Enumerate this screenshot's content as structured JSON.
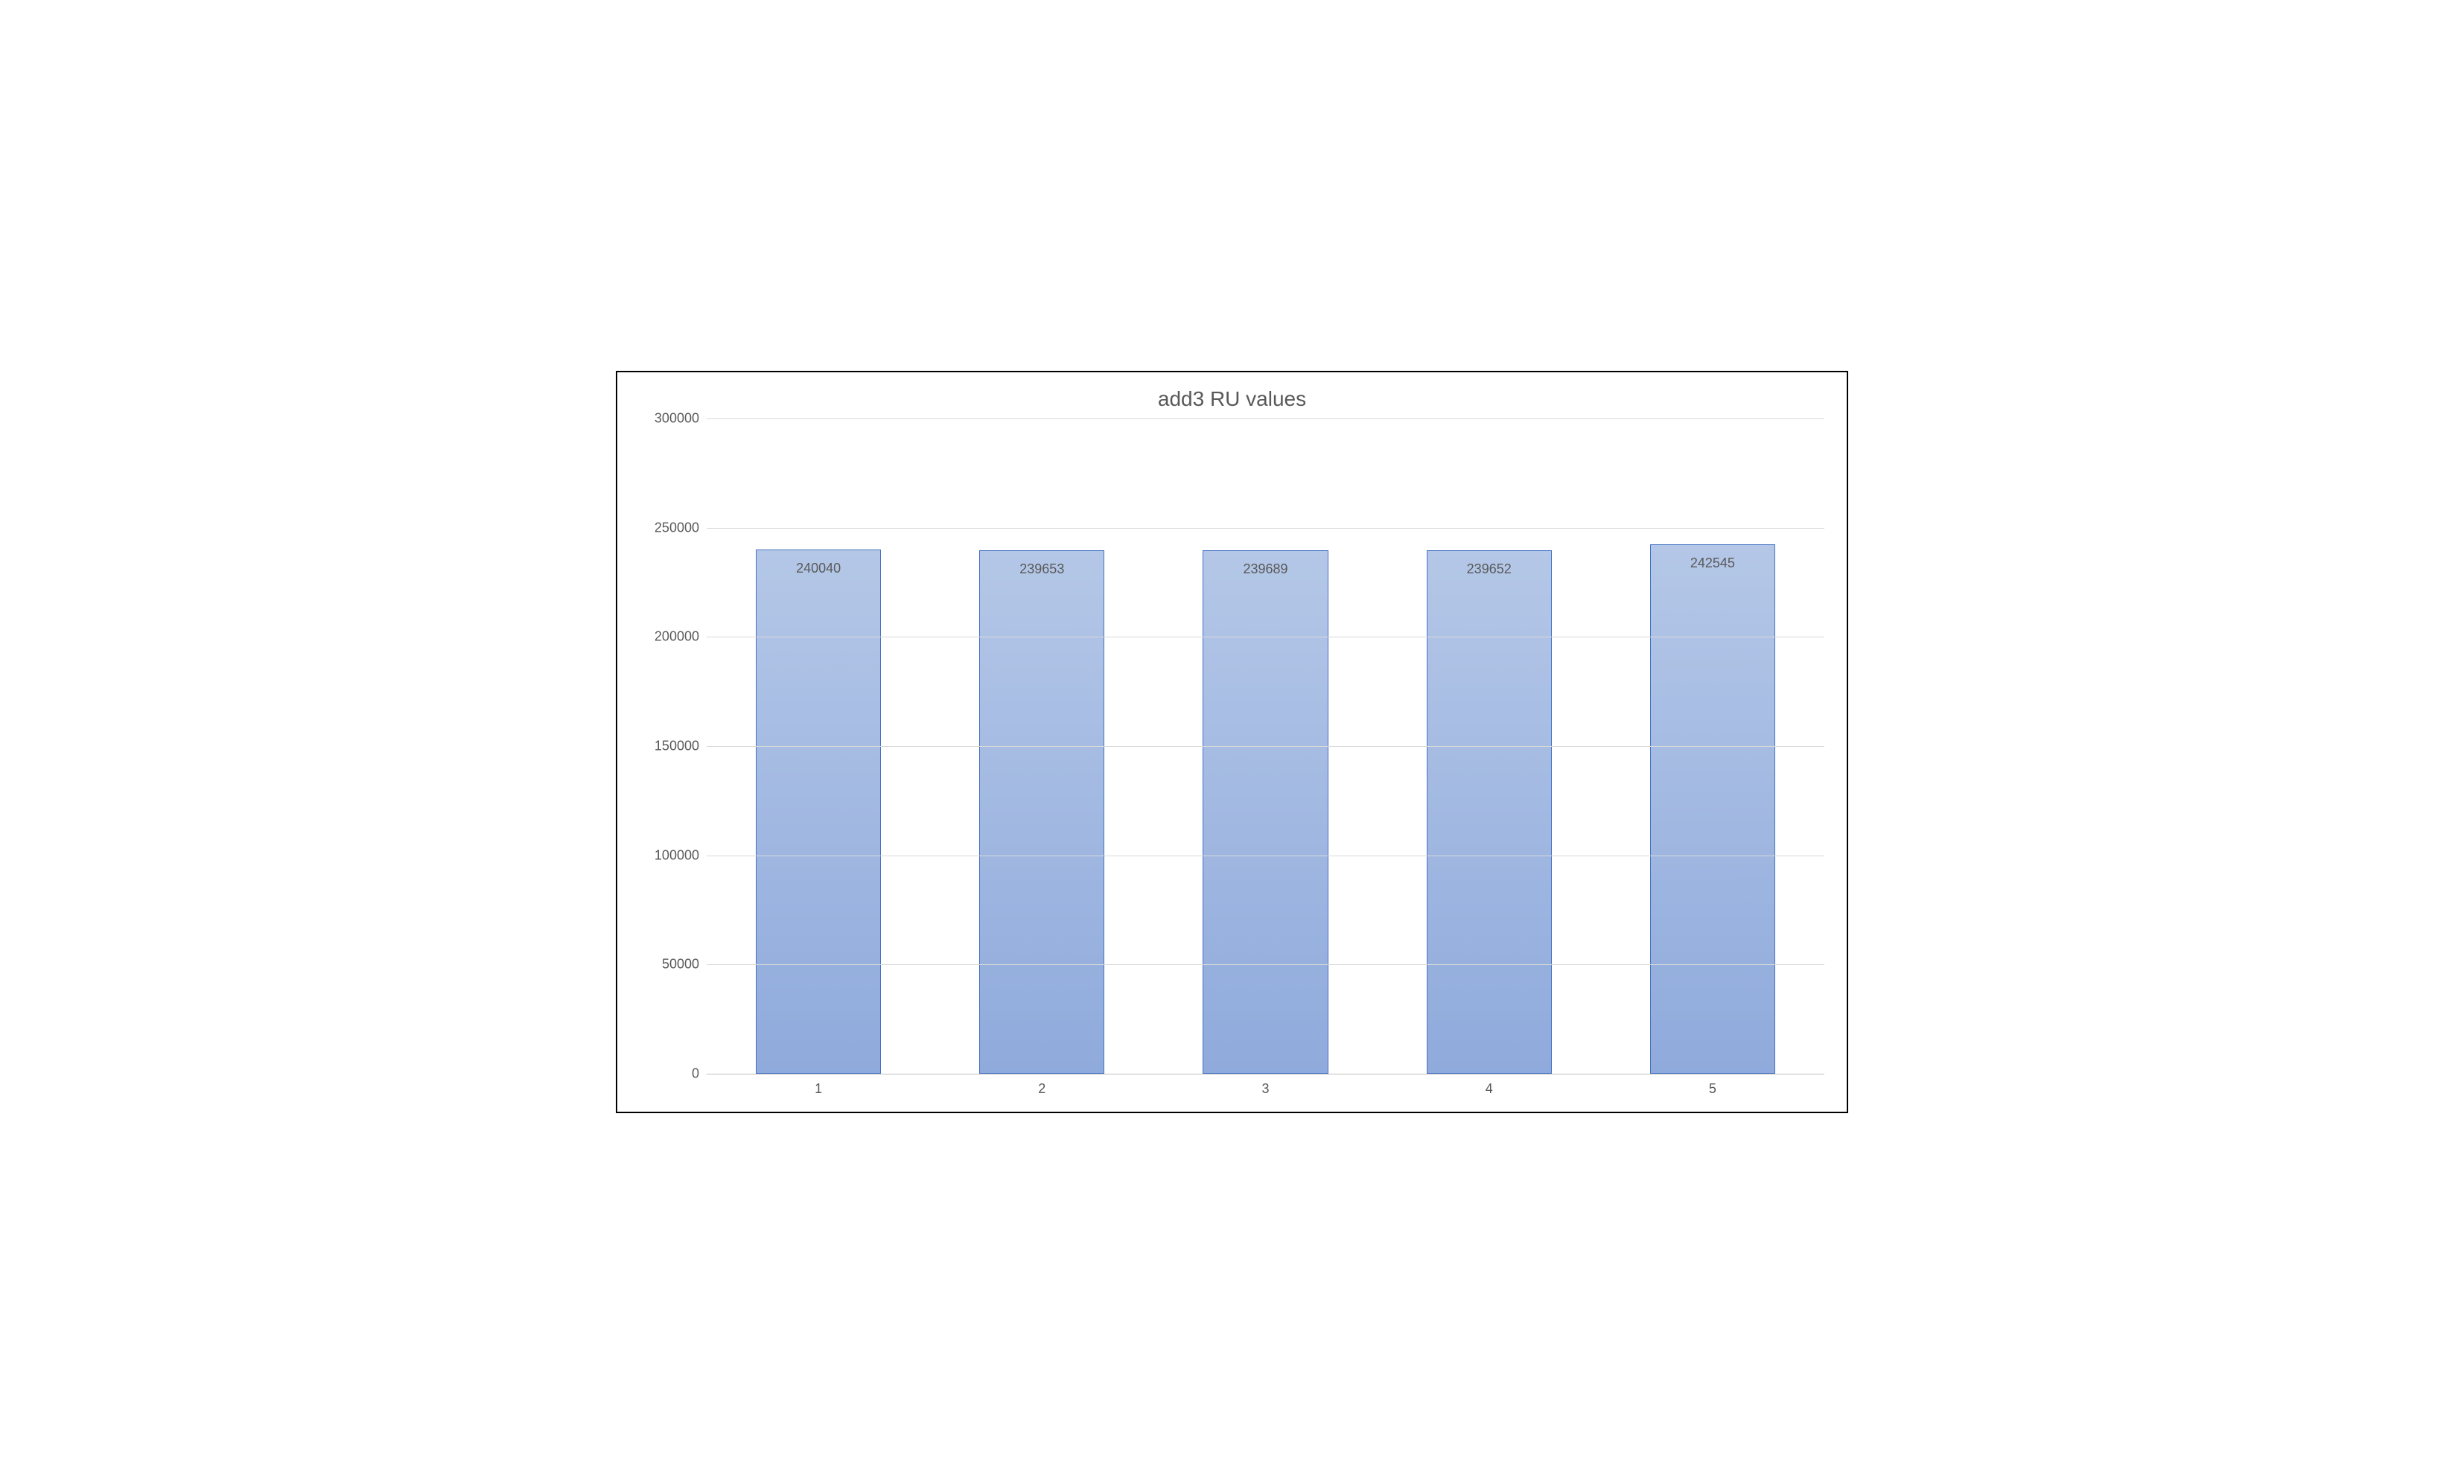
{
  "chart": {
    "type": "bar",
    "title": "add3 RU values",
    "title_fontsize": 28,
    "title_color": "#595959",
    "categories": [
      "1",
      "2",
      "3",
      "4",
      "5"
    ],
    "values": [
      240040,
      239653,
      239689,
      239652,
      242545
    ],
    "value_labels": [
      "240040",
      "239653",
      "239689",
      "239652",
      "242545"
    ],
    "bar_fill_top": "#b4c7e7",
    "bar_fill_bottom": "#8faadc",
    "bar_border_color": "#4472c4",
    "background_color": "#ffffff",
    "grid_color": "#d9d9d9",
    "baseline_color": "#bfbfbf",
    "border_color": "#000000",
    "axis_label_color": "#595959",
    "axis_label_fontsize": 18,
    "ylim": [
      0,
      300000
    ],
    "ytick_step": 50000,
    "yticks": [
      0,
      50000,
      100000,
      150000,
      200000,
      250000,
      300000
    ],
    "ytick_labels": [
      "0",
      "50000",
      "100000",
      "150000",
      "200000",
      "250000",
      "300000"
    ],
    "bar_width_ratio": 0.56
  }
}
